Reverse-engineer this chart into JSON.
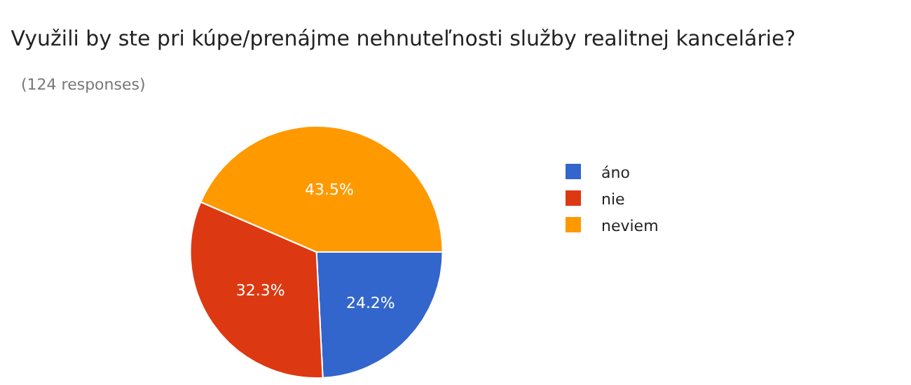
{
  "chart_data": {
    "type": "pie",
    "title": "Využili by ste pri kúpe/prenájme nehnuteľnosti služby realitnej kancelárie?",
    "subtitle": "(124 responses)",
    "categories": [
      "áno",
      "nie",
      "neviem"
    ],
    "values": [
      24.2,
      32.3,
      43.5
    ],
    "value_labels": [
      "24.2%",
      "32.3%",
      "43.5%"
    ],
    "colors": [
      "#3366cc",
      "#dc3912",
      "#ff9900"
    ],
    "legend": "right"
  }
}
